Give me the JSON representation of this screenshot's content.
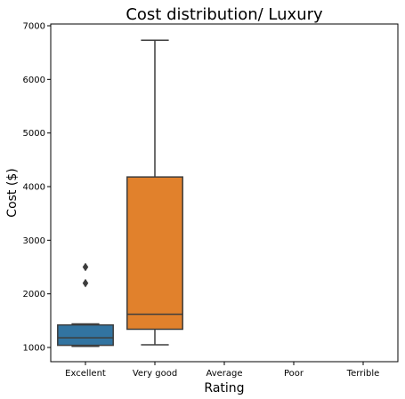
{
  "chart_data": {
    "type": "box",
    "title": "Cost distribution/ Luxury",
    "xlabel": "Rating",
    "ylabel": "Cost ($)",
    "categories": [
      "Excellent",
      "Very good",
      "Average",
      "Poor",
      "Terrible"
    ],
    "ylim": [
      900,
      7050
    ],
    "yticks": [
      1000,
      2000,
      3000,
      4000,
      5000,
      6000,
      7000
    ],
    "grid": false,
    "boxes": [
      {
        "category": "Excellent",
        "color": "#3274a1",
        "whisker_low": 1020,
        "q1": 1040,
        "median": 1180,
        "q3": 1420,
        "whisker_high": 1440,
        "outliers": [
          2200,
          2500
        ]
      },
      {
        "category": "Very good",
        "color": "#e1812c",
        "whisker_low": 1050,
        "q1": 1340,
        "median": 1620,
        "q3": 4180,
        "whisker_high": 6730,
        "outliers": []
      }
    ]
  }
}
